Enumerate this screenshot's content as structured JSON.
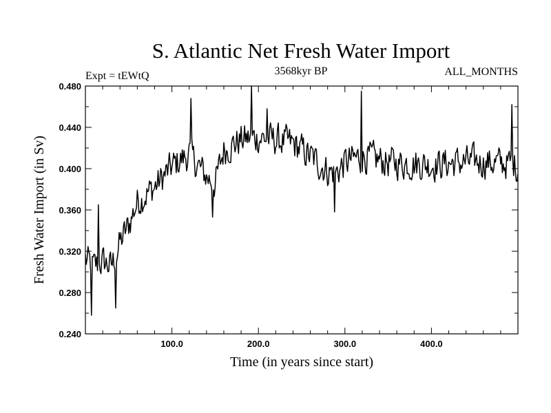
{
  "chart_data": {
    "type": "line",
    "title": "S. Atlantic Net Fresh Water Import",
    "subtitle_left": "Expt = tEWtQ",
    "subtitle_center": "3568kyr BP",
    "subtitle_right": "ALL_MONTHS",
    "xlabel": "Time (in years since start)",
    "ylabel": "Fresh Water Import (in Sv)",
    "xlim": [
      0,
      500
    ],
    "ylim": [
      0.24,
      0.48
    ],
    "xticks": [
      100,
      200,
      300,
      400
    ],
    "xtick_labels": [
      "100.0",
      "200.0",
      "300.0",
      "400.0"
    ],
    "yticks": [
      0.24,
      0.28,
      0.32,
      0.36,
      0.4,
      0.44,
      0.48
    ],
    "ytick_labels": [
      "0.240",
      "0.280",
      "0.320",
      "0.360",
      "0.400",
      "0.440",
      "0.480"
    ],
    "grid": false,
    "series": [
      {
        "name": "Fresh water import",
        "color": "#000000",
        "trend_x": [
          0,
          10,
          20,
          30,
          40,
          50,
          60,
          80,
          100,
          120,
          140,
          150,
          160,
          180,
          200,
          220,
          240,
          260,
          280,
          290,
          300,
          320,
          350,
          400,
          450,
          500
        ],
        "trend_y": [
          0.312,
          0.305,
          0.31,
          0.305,
          0.328,
          0.345,
          0.368,
          0.382,
          0.402,
          0.414,
          0.392,
          0.386,
          0.418,
          0.428,
          0.43,
          0.428,
          0.424,
          0.412,
          0.398,
          0.396,
          0.406,
          0.412,
          0.406,
          0.404,
          0.407,
          0.404
        ],
        "noise_amplitude": 0.014,
        "spikes": [
          {
            "x": 7,
            "y": 0.258
          },
          {
            "x": 15,
            "y": 0.365
          },
          {
            "x": 35,
            "y": 0.265
          },
          {
            "x": 122,
            "y": 0.468
          },
          {
            "x": 147,
            "y": 0.353
          },
          {
            "x": 192,
            "y": 0.48
          },
          {
            "x": 210,
            "y": 0.458
          },
          {
            "x": 288,
            "y": 0.358
          },
          {
            "x": 319,
            "y": 0.475
          },
          {
            "x": 493,
            "y": 0.462
          },
          {
            "x": 498,
            "y": 0.388
          }
        ]
      }
    ]
  }
}
